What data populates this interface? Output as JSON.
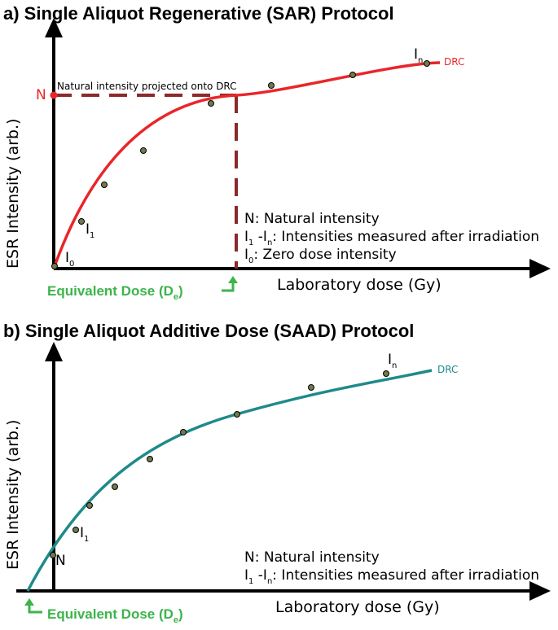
{
  "colors": {
    "sar_curve": "#e8262a",
    "saad_curve": "#1f8a8a",
    "dashed_projection": "#8b2a2a",
    "equivalent_dose": "#3cb44b",
    "point_fill": "#6f7a4e"
  },
  "panel_a": {
    "title": "a)  Single Aliquot Regenerative (SAR) Protocol",
    "ylabel": "ESR Intensity (arb.)",
    "xlabel": "Laboratory dose (Gy)",
    "curve_label": "DRC",
    "natural_marker": "N",
    "projection_note": "Natural intensity projected onto DRC",
    "point_labels": {
      "i0": "I",
      "i0_sub": "0",
      "i1": "I",
      "i1_sub": "1",
      "in": "I",
      "in_sub": "n"
    },
    "legend": {
      "line1": "N: Natural intensity",
      "line2_prefix": "I",
      "line2_sub1": "1",
      "line2_mid": " -I",
      "line2_sub2": "n",
      "line2_text": ": Intensities measured after irradiation",
      "line3_prefix": "I",
      "line3_sub": "0",
      "line3_text": ": Zero dose intensity"
    },
    "equivalent_dose": {
      "text": "Equivalent Dose (D",
      "sub": "e",
      "close": ")"
    }
  },
  "panel_b": {
    "title": "b) Single Aliquot Additive Dose (SAAD) Protocol",
    "ylabel": "ESR Intensity (arb.)",
    "xlabel": "Laboratory dose (Gy)",
    "curve_label": "DRC",
    "natural_marker": "N",
    "point_labels": {
      "i1": "I",
      "i1_sub": "1",
      "in": "I",
      "in_sub": "n"
    },
    "legend": {
      "line1": "N: Natural intensity",
      "line2_prefix": "I",
      "line2_sub1": "1",
      "line2_mid": " -I",
      "line2_sub2": "n",
      "line2_text": ": Intensities measured after irradiation"
    },
    "equivalent_dose": {
      "text": "Equivalent Dose (D",
      "sub": "e",
      "close": ")"
    }
  }
}
